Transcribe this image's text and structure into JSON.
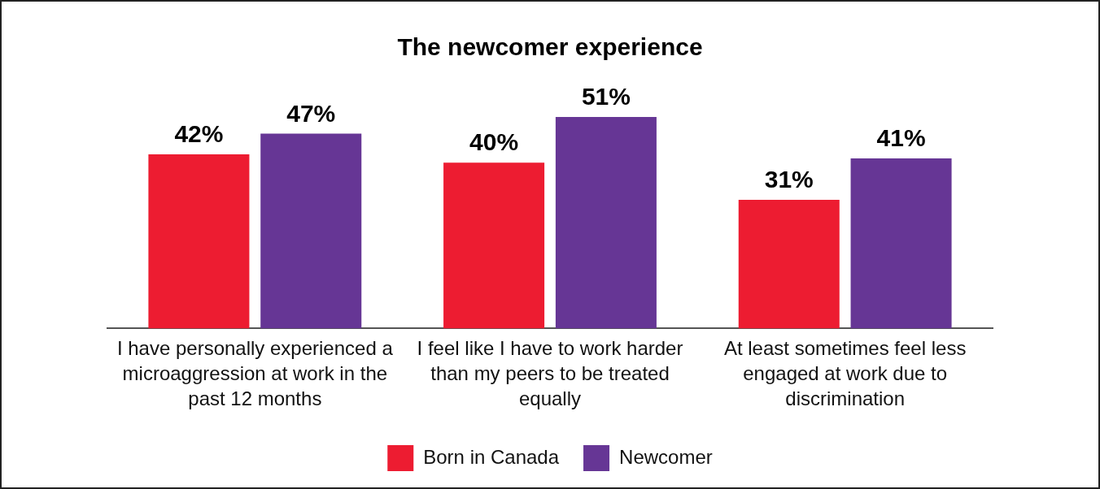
{
  "chart_data": {
    "type": "bar",
    "title": "The newcomer experience",
    "categories": [
      "I have personally experienced a microaggression at work in the past 12 months",
      "I feel like I have to work harder than my peers to be treated equally",
      "At least sometimes feel less engaged at work due to discrimination"
    ],
    "series": [
      {
        "name": "Born in Canada",
        "color": "#ed1c31",
        "values": [
          42,
          40,
          31
        ],
        "value_labels": [
          "42%",
          "40%",
          "31%"
        ]
      },
      {
        "name": "Newcomer",
        "color": "#663695",
        "values": [
          47,
          51,
          41
        ],
        "value_labels": [
          "47%",
          "51%",
          "41%"
        ]
      }
    ],
    "legend": "bottom",
    "grid": false
  }
}
